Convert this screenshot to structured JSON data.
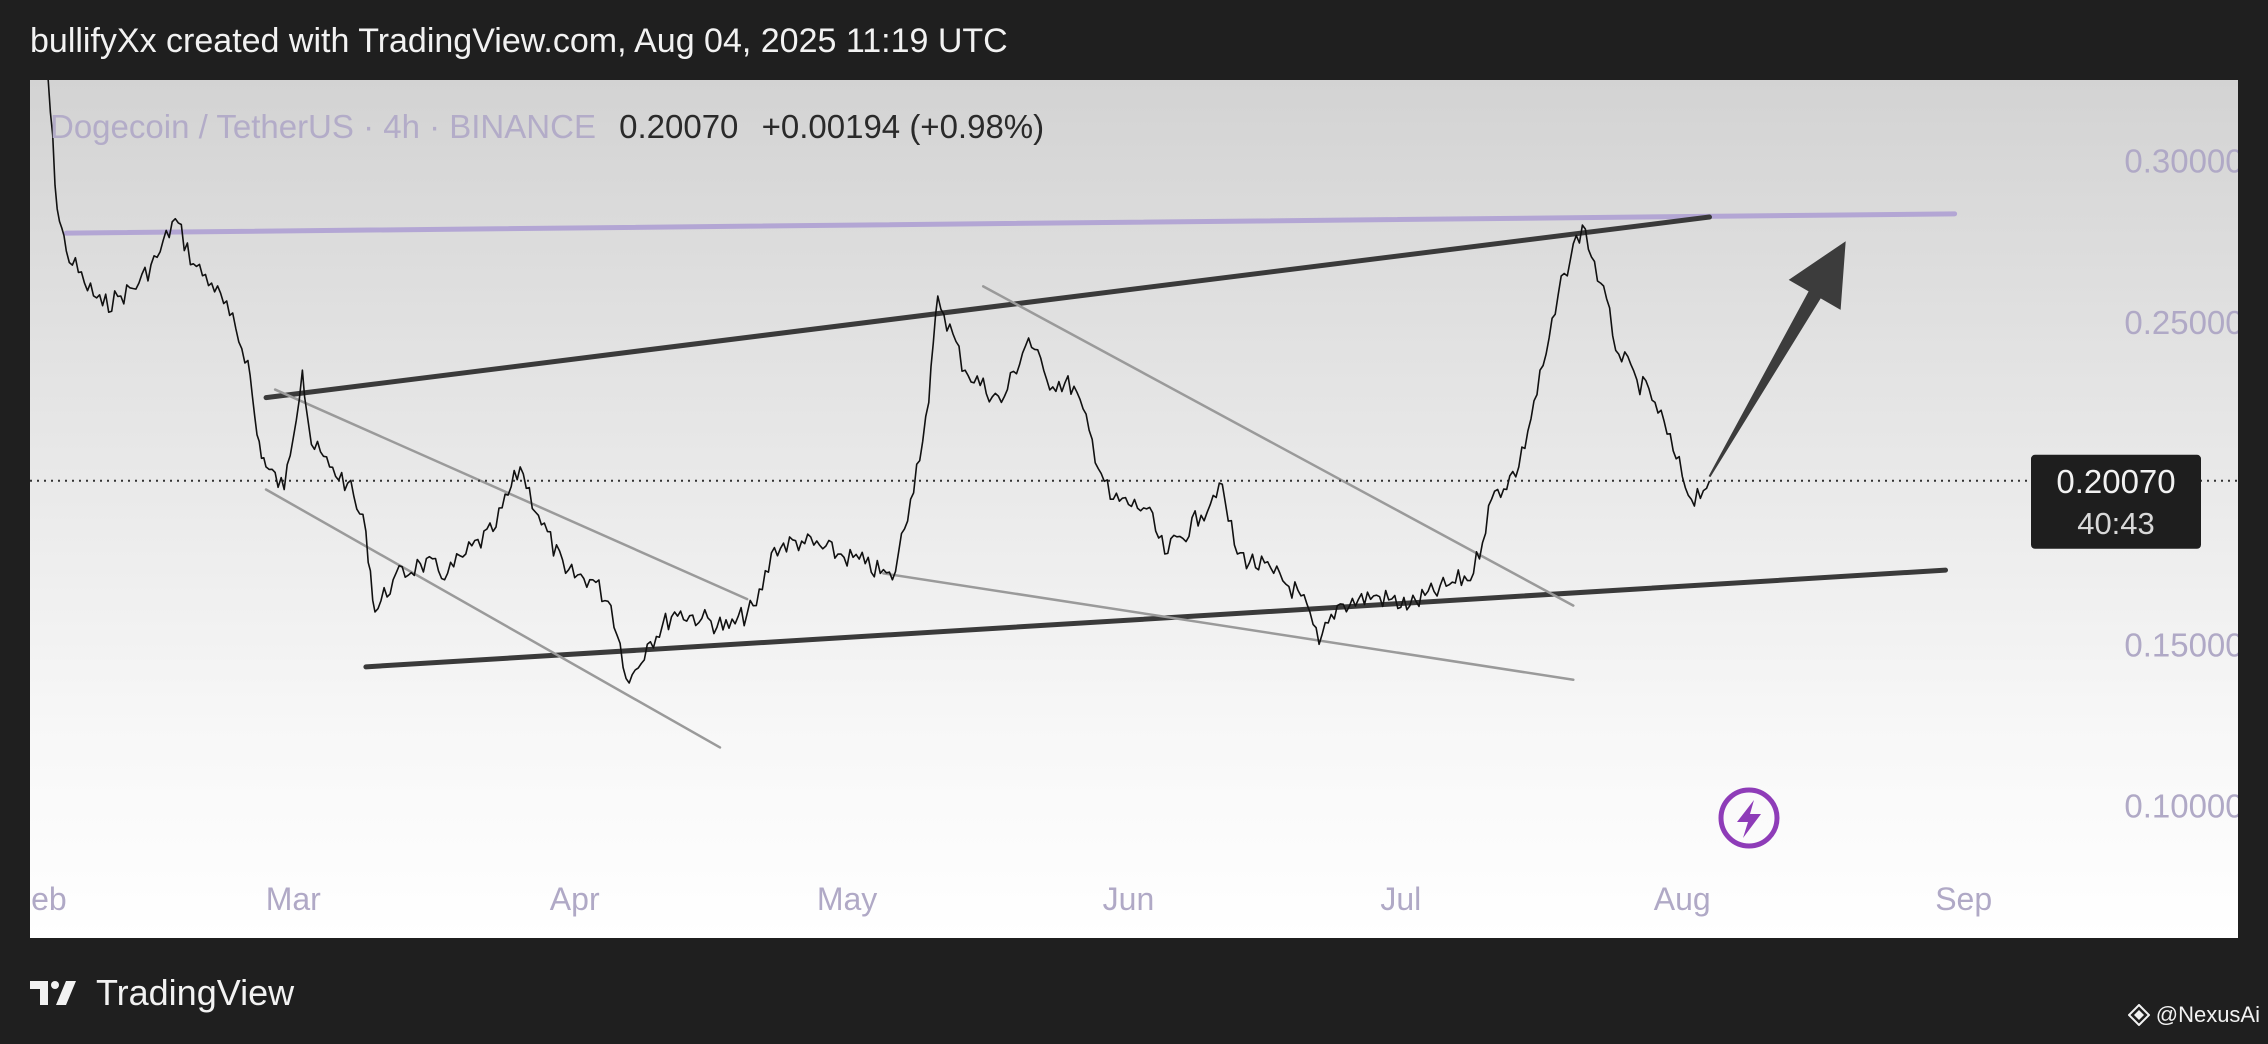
{
  "header": {
    "text": "bullifyXx created with TradingView.com, Aug 04, 2025 11:19 UTC"
  },
  "legend": {
    "symbol": "Dogecoin / TetherUS · 4h · BINANCE",
    "last": "0.20070",
    "change": "+0.00194 (+0.98%)"
  },
  "price_tag": {
    "price": "0.20070",
    "countdown": "40:43"
  },
  "footer": {
    "brand": "TradingView",
    "credit": "@NexusAi"
  },
  "colors": {
    "resistance": "#b3a6d4",
    "trend": "#3a3a3a",
    "channel": "#9a9a9a",
    "flash": "#8e3cb8"
  },
  "chart_data": {
    "type": "line",
    "title": "",
    "xlabel": "",
    "ylabel": "",
    "x_ticks": [
      "Feb",
      "Mar",
      "Apr",
      "May",
      "Jun",
      "Jul",
      "Aug",
      "Sep"
    ],
    "y_ticks": [
      "0.30000",
      "0.25000",
      "0.15000",
      "0.10000"
    ],
    "ylim": [
      0.08,
      0.325
    ],
    "xlim": [
      "2025-01-31",
      "2025-09-05"
    ],
    "series": [
      {
        "points": [
          [
            "2025-01-31",
            0.33
          ],
          [
            "2025-02-02",
            0.325
          ],
          [
            "2025-02-03",
            0.285
          ],
          [
            "2025-02-04",
            0.272
          ],
          [
            "2025-02-06",
            0.262
          ],
          [
            "2025-02-08",
            0.255
          ],
          [
            "2025-02-10",
            0.258
          ],
          [
            "2025-02-12",
            0.262
          ],
          [
            "2025-02-14",
            0.27
          ],
          [
            "2025-02-16",
            0.282
          ],
          [
            "2025-02-18",
            0.268
          ],
          [
            "2025-02-20",
            0.262
          ],
          [
            "2025-02-22",
            0.252
          ],
          [
            "2025-02-24",
            0.238
          ],
          [
            "2025-02-25",
            0.215
          ],
          [
            "2025-02-26",
            0.205
          ],
          [
            "2025-02-28",
            0.198
          ],
          [
            "2025-03-02",
            0.235
          ],
          [
            "2025-03-03",
            0.212
          ],
          [
            "2025-03-05",
            0.205
          ],
          [
            "2025-03-07",
            0.2
          ],
          [
            "2025-03-09",
            0.185
          ],
          [
            "2025-03-10",
            0.16
          ],
          [
            "2025-03-12",
            0.17
          ],
          [
            "2025-03-15",
            0.175
          ],
          [
            "2025-03-18",
            0.172
          ],
          [
            "2025-03-20",
            0.178
          ],
          [
            "2025-03-23",
            0.185
          ],
          [
            "2025-03-26",
            0.205
          ],
          [
            "2025-03-28",
            0.19
          ],
          [
            "2025-03-31",
            0.172
          ],
          [
            "2025-04-03",
            0.17
          ],
          [
            "2025-04-05",
            0.162
          ],
          [
            "2025-04-07",
            0.138
          ],
          [
            "2025-04-09",
            0.15
          ],
          [
            "2025-04-12",
            0.16
          ],
          [
            "2025-04-15",
            0.158
          ],
          [
            "2025-04-18",
            0.155
          ],
          [
            "2025-04-21",
            0.162
          ],
          [
            "2025-04-23",
            0.18
          ],
          [
            "2025-04-26",
            0.182
          ],
          [
            "2025-04-30",
            0.178
          ],
          [
            "2025-05-03",
            0.175
          ],
          [
            "2025-05-06",
            0.17
          ],
          [
            "2025-05-08",
            0.195
          ],
          [
            "2025-05-10",
            0.225
          ],
          [
            "2025-05-11",
            0.258
          ],
          [
            "2025-05-14",
            0.235
          ],
          [
            "2025-05-18",
            0.225
          ],
          [
            "2025-05-21",
            0.245
          ],
          [
            "2025-05-23",
            0.232
          ],
          [
            "2025-05-26",
            0.23
          ],
          [
            "2025-05-30",
            0.195
          ],
          [
            "2025-06-03",
            0.192
          ],
          [
            "2025-06-05",
            0.178
          ],
          [
            "2025-06-09",
            0.19
          ],
          [
            "2025-06-11",
            0.2
          ],
          [
            "2025-06-13",
            0.178
          ],
          [
            "2025-06-17",
            0.172
          ],
          [
            "2025-06-20",
            0.165
          ],
          [
            "2025-06-22",
            0.15
          ],
          [
            "2025-06-24",
            0.162
          ],
          [
            "2025-06-28",
            0.165
          ],
          [
            "2025-07-02",
            0.162
          ],
          [
            "2025-07-06",
            0.168
          ],
          [
            "2025-07-09",
            0.172
          ],
          [
            "2025-07-11",
            0.195
          ],
          [
            "2025-07-14",
            0.205
          ],
          [
            "2025-07-17",
            0.24
          ],
          [
            "2025-07-19",
            0.265
          ],
          [
            "2025-07-21",
            0.28
          ],
          [
            "2025-07-23",
            0.262
          ],
          [
            "2025-07-25",
            0.24
          ],
          [
            "2025-07-27",
            0.232
          ],
          [
            "2025-07-29",
            0.225
          ],
          [
            "2025-07-31",
            0.21
          ],
          [
            "2025-08-02",
            0.195
          ],
          [
            "2025-08-04",
            0.2007
          ]
        ]
      }
    ],
    "lines": [
      {
        "role": "resistance",
        "from": [
          "2025-02-04",
          0.2775
        ],
        "to": [
          "2025-08-31",
          0.2835
        ]
      },
      {
        "role": "trend",
        "from": [
          "2025-02-26",
          0.2265
        ],
        "to": [
          "2025-08-04",
          0.2825
        ]
      },
      {
        "role": "trend",
        "from": [
          "2025-03-09",
          0.143
        ],
        "to": [
          "2025-08-30",
          0.173
        ]
      },
      {
        "role": "channel",
        "from": [
          "2025-02-26",
          0.198
        ],
        "to": [
          "2025-04-17",
          0.118
        ]
      },
      {
        "role": "channel",
        "from": [
          "2025-02-27",
          0.229
        ],
        "to": [
          "2025-04-20",
          0.164
        ]
      },
      {
        "role": "channel",
        "from": [
          "2025-05-16",
          0.261
        ],
        "to": [
          "2025-07-20",
          0.162
        ]
      },
      {
        "role": "channel",
        "from": [
          "2025-05-05",
          0.172
        ],
        "to": [
          "2025-07-20",
          0.139
        ]
      }
    ],
    "arrow": {
      "from": [
        "2025-08-04",
        0.202
      ],
      "to": [
        "2025-08-19",
        0.275
      ]
    },
    "last_price": 0.2007
  }
}
